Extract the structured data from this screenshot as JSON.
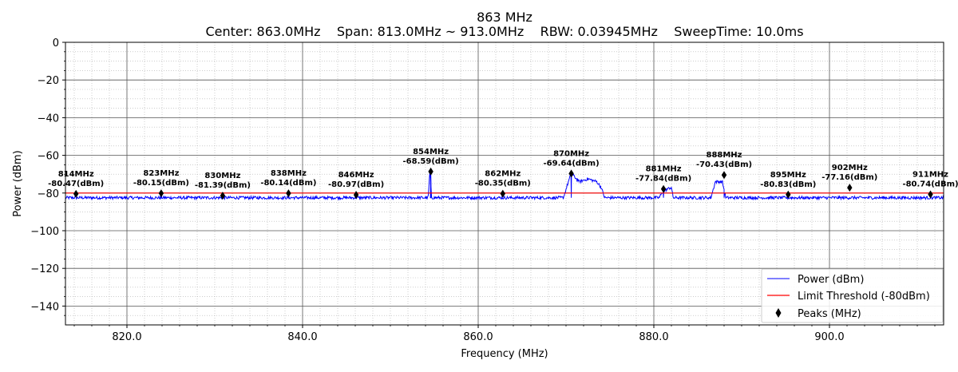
{
  "chart_data": {
    "type": "line",
    "title": "863 MHz",
    "subtitle": "Center: 863.0MHz    Span: 813.0MHz ~ 913.0MHz    RBW: 0.03945MHz    SweepTime: 10.0ms",
    "xlabel": "Frequency (MHz)",
    "ylabel": "Power (dBm)",
    "xlim": [
      813.0,
      913.0
    ],
    "ylim": [
      -150,
      0
    ],
    "x_ticks": [
      820.0,
      840.0,
      860.0,
      880.0,
      900.0
    ],
    "x_tick_labels": [
      "820.0",
      "840.0",
      "860.0",
      "880.0",
      "900.0"
    ],
    "y_ticks": [
      0,
      -20,
      -40,
      -60,
      -80,
      -100,
      -120,
      -140
    ],
    "y_tick_labels": [
      "0",
      "−20",
      "−40",
      "−60",
      "−80",
      "−100",
      "−120",
      "−140"
    ],
    "grid": true,
    "legend_position": "bottom-right",
    "noise_floor_dbm": -82.5,
    "series": [
      {
        "name": "Power (dBm)",
        "color": "#0000ff",
        "x": [
          813.0,
          854.3,
          854.5,
          854.7,
          869.7,
          870.2,
          870.6,
          871.5,
          872.5,
          873.5,
          874.0,
          874.4,
          880.6,
          881.0,
          881.5,
          882.0,
          882.2,
          886.5,
          887.0,
          887.8,
          888.2,
          913.0
        ],
        "values": [
          -82.5,
          -82.5,
          -68.6,
          -82.5,
          -82.5,
          -75.0,
          -69.6,
          -74.0,
          -72.5,
          -74.0,
          -77.0,
          -82.5,
          -82.5,
          -79.5,
          -78.0,
          -77.0,
          -82.5,
          -82.5,
          -74.0,
          -74.0,
          -82.5,
          -82.5
        ]
      },
      {
        "name": "Limit Threshold (-80dBm)",
        "color": "#ff0000",
        "x": [
          813.0,
          913.0
        ],
        "values": [
          -80.0,
          -80.0
        ]
      }
    ],
    "peaks_series_name": "Peaks (MHz)",
    "peaks": [
      {
        "x": 814.2,
        "y": -80.47,
        "label": "814MHz",
        "value_label": "-80.47(dBm)"
      },
      {
        "x": 823.9,
        "y": -80.15,
        "label": "823MHz",
        "value_label": "-80.15(dBm)"
      },
      {
        "x": 830.9,
        "y": -81.39,
        "label": "830MHz",
        "value_label": "-81.39(dBm)"
      },
      {
        "x": 838.4,
        "y": -80.14,
        "label": "838MHz",
        "value_label": "-80.14(dBm)"
      },
      {
        "x": 846.1,
        "y": -80.97,
        "label": "846MHz",
        "value_label": "-80.97(dBm)"
      },
      {
        "x": 854.6,
        "y": -68.59,
        "label": "854MHz",
        "value_label": "-68.59(dBm)"
      },
      {
        "x": 862.8,
        "y": -80.35,
        "label": "862MHz",
        "value_label": "-80.35(dBm)"
      },
      {
        "x": 870.6,
        "y": -69.64,
        "label": "870MHz",
        "value_label": "-69.64(dBm)"
      },
      {
        "x": 881.1,
        "y": -77.84,
        "label": "881MHz",
        "value_label": "-77.84(dBm)"
      },
      {
        "x": 888.0,
        "y": -70.43,
        "label": "888MHz",
        "value_label": "-70.43(dBm)"
      },
      {
        "x": 895.3,
        "y": -80.83,
        "label": "895MHz",
        "value_label": "-80.83(dBm)"
      },
      {
        "x": 902.3,
        "y": -77.16,
        "label": "902MHz",
        "value_label": "-77.16(dBm)"
      },
      {
        "x": 911.5,
        "y": -80.74,
        "label": "911MHz",
        "value_label": "-80.74(dBm)"
      }
    ],
    "legend": [
      {
        "label": "Power (dBm)",
        "color": "#0000ff",
        "kind": "line"
      },
      {
        "label": "Limit Threshold (-80dBm)",
        "color": "#ff0000",
        "kind": "line"
      },
      {
        "label": "Peaks (MHz)",
        "color": "#000000",
        "kind": "diamond"
      }
    ]
  }
}
